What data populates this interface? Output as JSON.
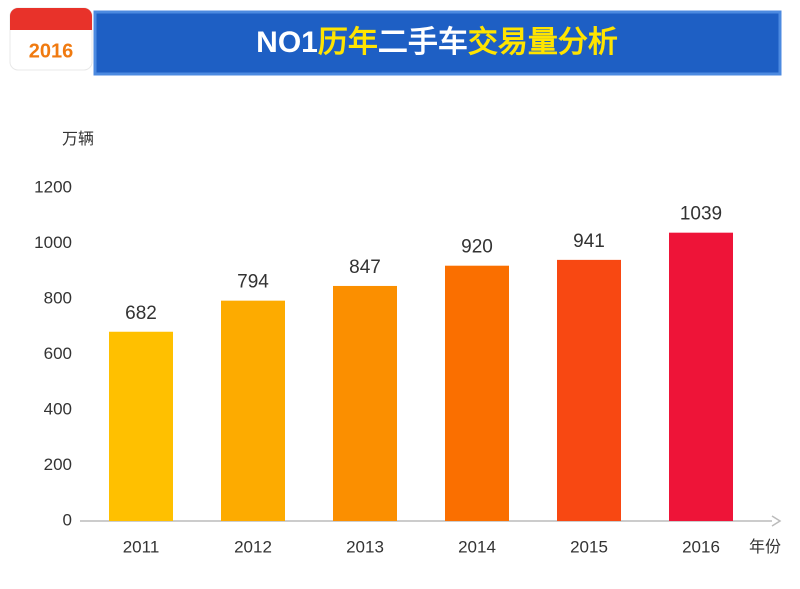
{
  "chart_data": {
    "type": "bar",
    "badge": "2016",
    "title": {
      "parts": [
        "NO1",
        "历年",
        "二手车",
        "交易量分析"
      ],
      "colors": [
        "#ffffff",
        "#ffe400",
        "#ffffff",
        "#ffe400"
      ]
    },
    "y_label": "万辆",
    "x_label": "年份",
    "categories": [
      "2011",
      "2012",
      "2013",
      "2014",
      "2015",
      "2016"
    ],
    "values": [
      682,
      794,
      847,
      920,
      941,
      1039
    ],
    "colors": [
      "#ffc000",
      "#fdab00",
      "#fb8f00",
      "#fa6f00",
      "#f84812",
      "#ee1438"
    ],
    "ylim": [
      0,
      1200
    ],
    "yticks": [
      0,
      200,
      400,
      600,
      800,
      1000,
      1200
    ],
    "grid": false
  }
}
